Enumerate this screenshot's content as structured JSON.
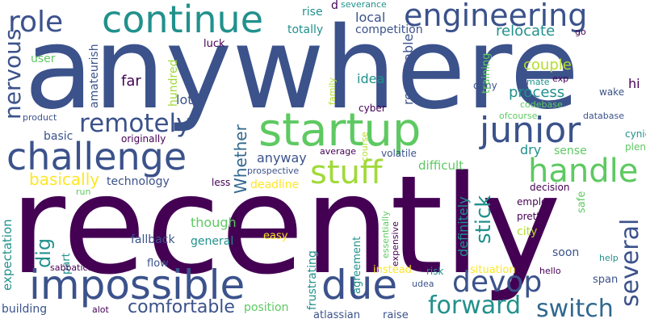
{
  "word_cloud": {
    "background": "#ffffff",
    "palette": [
      "#440154",
      "#3b528b",
      "#21918c",
      "#5ec962",
      "#fde725"
    ],
    "words": [
      {
        "text": "anywhere",
        "color": "#3b528b",
        "orientation": "horizontal"
      },
      {
        "text": "recently",
        "color": "#440154",
        "orientation": "horizontal"
      },
      {
        "text": "impossible",
        "color": "#3b528b",
        "orientation": "horizontal"
      },
      {
        "text": "startup",
        "color": "#5ec962",
        "orientation": "horizontal"
      },
      {
        "text": "challenge",
        "color": "#3b528b",
        "orientation": "horizontal"
      },
      {
        "text": "continue",
        "color": "#21918c",
        "orientation": "horizontal"
      },
      {
        "text": "due",
        "color": "#3b528b",
        "orientation": "horizontal"
      },
      {
        "text": "junior",
        "color": "#3b528b",
        "orientation": "horizontal"
      },
      {
        "text": "engineering",
        "color": "#3b528b",
        "orientation": "horizontal"
      },
      {
        "text": "stuff",
        "color": "#a0da39",
        "orientation": "horizontal"
      },
      {
        "text": "handle",
        "color": "#5ec962",
        "orientation": "horizontal"
      },
      {
        "text": "role",
        "color": "#3b528b",
        "orientation": "horizontal"
      },
      {
        "text": "remotely",
        "color": "#3b528b",
        "orientation": "horizontal"
      },
      {
        "text": "devop",
        "color": "#3b528b",
        "orientation": "horizontal"
      },
      {
        "text": "forward",
        "color": "#21918c",
        "orientation": "horizontal"
      },
      {
        "text": "switch",
        "color": "#31688e",
        "orientation": "horizontal"
      },
      {
        "text": "several",
        "color": "#3b528b",
        "orientation": "vertical"
      },
      {
        "text": "nervous",
        "color": "#3b528b",
        "orientation": "vertical"
      },
      {
        "text": "comfortable",
        "color": "#3b528b",
        "orientation": "horizontal"
      },
      {
        "text": "stick",
        "color": "#21918c",
        "orientation": "vertical"
      },
      {
        "text": "basically",
        "color": "#fde725",
        "orientation": "horizontal"
      },
      {
        "text": "dig",
        "color": "#21918c",
        "orientation": "vertical"
      },
      {
        "text": "Whether",
        "color": "#31688e",
        "orientation": "vertical"
      },
      {
        "text": "relocate",
        "color": "#21918c",
        "orientation": "horizontal"
      },
      {
        "text": "process",
        "color": "#21918c",
        "orientation": "horizontal"
      },
      {
        "text": "couple",
        "color": "#b5de2b",
        "orientation": "horizontal"
      },
      {
        "text": "local",
        "color": "#3b528b",
        "orientation": "horizontal"
      },
      {
        "text": "competition",
        "color": "#3b528b",
        "orientation": "horizontal"
      },
      {
        "text": "reasonable",
        "color": "#3b528b",
        "orientation": "vertical"
      },
      {
        "text": "idea",
        "color": "#21918c",
        "orientation": "horizontal"
      },
      {
        "text": "far",
        "color": "#440154",
        "orientation": "horizontal"
      },
      {
        "text": "lot",
        "color": "#3b528b",
        "orientation": "horizontal"
      },
      {
        "text": "hundred",
        "color": "#a0da39",
        "orientation": "vertical"
      },
      {
        "text": "amateurish",
        "color": "#3b528b",
        "orientation": "vertical"
      },
      {
        "text": "user",
        "color": "#5ec962",
        "orientation": "horizontal"
      },
      {
        "text": "luck",
        "color": "#440154",
        "orientation": "horizontal"
      },
      {
        "text": "totally",
        "color": "#21918c",
        "orientation": "horizontal"
      },
      {
        "text": "rise",
        "color": "#21918c",
        "orientation": "horizontal"
      },
      {
        "text": "d",
        "color": "#440154",
        "orientation": "horizontal"
      },
      {
        "text": "severance",
        "color": "#21918c",
        "orientation": "horizontal"
      },
      {
        "text": "go",
        "color": "#440154",
        "orientation": "horizontal"
      },
      {
        "text": "deny",
        "color": "#3b528b",
        "orientation": "horizontal"
      },
      {
        "text": "training",
        "color": "#5ec962",
        "orientation": "vertical"
      },
      {
        "text": "family",
        "color": "#b5de2b",
        "orientation": "vertical"
      },
      {
        "text": "mate",
        "color": "#21918c",
        "orientation": "horizontal"
      },
      {
        "text": "exp",
        "color": "#440154",
        "orientation": "horizontal"
      },
      {
        "text": "codebase",
        "color": "#5ec962",
        "orientation": "horizontal"
      },
      {
        "text": "wake",
        "color": "#3b528b",
        "orientation": "horizontal"
      },
      {
        "text": "hi",
        "color": "#440154",
        "orientation": "horizontal"
      },
      {
        "text": "database",
        "color": "#3b528b",
        "orientation": "horizontal"
      },
      {
        "text": "ofcourse",
        "color": "#5ec962",
        "orientation": "horizontal"
      },
      {
        "text": "cynic",
        "color": "#21918c",
        "orientation": "horizontal"
      },
      {
        "text": "plenty",
        "color": "#5ec962",
        "orientation": "horizontal"
      },
      {
        "text": "cyber",
        "color": "#440154",
        "orientation": "horizontal"
      },
      {
        "text": "course",
        "color": "#b5de2b",
        "orientation": "vertical"
      },
      {
        "text": "product",
        "color": "#3b528b",
        "orientation": "horizontal"
      },
      {
        "text": "basic",
        "color": "#3b528b",
        "orientation": "horizontal"
      },
      {
        "text": "originally",
        "color": "#440154",
        "orientation": "horizontal"
      },
      {
        "text": "anyway",
        "color": "#3b528b",
        "orientation": "horizontal"
      },
      {
        "text": "average",
        "color": "#440154",
        "orientation": "horizontal"
      },
      {
        "text": "volatile",
        "color": "#3b528b",
        "orientation": "horizontal"
      },
      {
        "text": "dry",
        "color": "#21918c",
        "orientation": "horizontal"
      },
      {
        "text": "sense",
        "color": "#5ec962",
        "orientation": "horizontal"
      },
      {
        "text": "prospective",
        "color": "#3b528b",
        "orientation": "horizontal"
      },
      {
        "text": "difficult",
        "color": "#5ec962",
        "orientation": "horizontal"
      },
      {
        "text": "technology",
        "color": "#3b528b",
        "orientation": "horizontal"
      },
      {
        "text": "less",
        "color": "#440154",
        "orientation": "horizontal"
      },
      {
        "text": "deadline",
        "color": "#fde725",
        "orientation": "horizontal"
      },
      {
        "text": "run",
        "color": "#5ec962",
        "orientation": "horizontal"
      },
      {
        "text": "decision",
        "color": "#440154",
        "orientation": "horizontal"
      },
      {
        "text": "safe",
        "color": "#5ec962",
        "orientation": "vertical"
      },
      {
        "text": "employ",
        "color": "#440154",
        "orientation": "horizontal"
      },
      {
        "text": "pretty",
        "color": "#440154",
        "orientation": "horizontal"
      },
      {
        "text": "city",
        "color": "#b5de2b",
        "orientation": "horizontal"
      },
      {
        "text": "definitely",
        "color": "#21918c",
        "orientation": "vertical"
      },
      {
        "text": "essentially",
        "color": "#5ec962",
        "orientation": "vertical"
      },
      {
        "text": "expensive",
        "color": "#440154",
        "orientation": "vertical"
      },
      {
        "text": "expectation",
        "color": "#21918c",
        "orientation": "vertical"
      },
      {
        "text": "part",
        "color": "#21918c",
        "orientation": "vertical"
      },
      {
        "text": "though",
        "color": "#5ec962",
        "orientation": "horizontal"
      },
      {
        "text": "general",
        "color": "#21918c",
        "orientation": "horizontal"
      },
      {
        "text": "fallback",
        "color": "#3b528b",
        "orientation": "horizontal"
      },
      {
        "text": "easy",
        "color": "#fde725",
        "orientation": "horizontal"
      },
      {
        "text": "flow",
        "color": "#3b528b",
        "orientation": "horizontal"
      },
      {
        "text": "agreement",
        "color": "#21918c",
        "orientation": "vertical"
      },
      {
        "text": "instead",
        "color": "#fde725",
        "orientation": "horizontal"
      },
      {
        "text": "risk",
        "color": "#21918c",
        "orientation": "horizontal"
      },
      {
        "text": "udea",
        "color": "#3b528b",
        "orientation": "horizontal"
      },
      {
        "text": "frustrating",
        "color": "#21918c",
        "orientation": "vertical"
      },
      {
        "text": "situation",
        "color": "#fde725",
        "orientation": "horizontal"
      },
      {
        "text": "soon",
        "color": "#3b528b",
        "orientation": "horizontal"
      },
      {
        "text": "hello",
        "color": "#440154",
        "orientation": "horizontal"
      },
      {
        "text": "help",
        "color": "#21918c",
        "orientation": "horizontal"
      },
      {
        "text": "span",
        "color": "#3b528b",
        "orientation": "horizontal"
      },
      {
        "text": "sabbatical",
        "color": "#440154",
        "orientation": "horizontal"
      },
      {
        "text": "building",
        "color": "#3b528b",
        "orientation": "horizontal"
      },
      {
        "text": "alot",
        "color": "#440154",
        "orientation": "horizontal"
      },
      {
        "text": "position",
        "color": "#5ec962",
        "orientation": "horizontal"
      },
      {
        "text": "atlassian",
        "color": "#3b528b",
        "orientation": "horizontal"
      },
      {
        "text": "raise",
        "color": "#3b528b",
        "orientation": "horizontal"
      }
    ]
  }
}
